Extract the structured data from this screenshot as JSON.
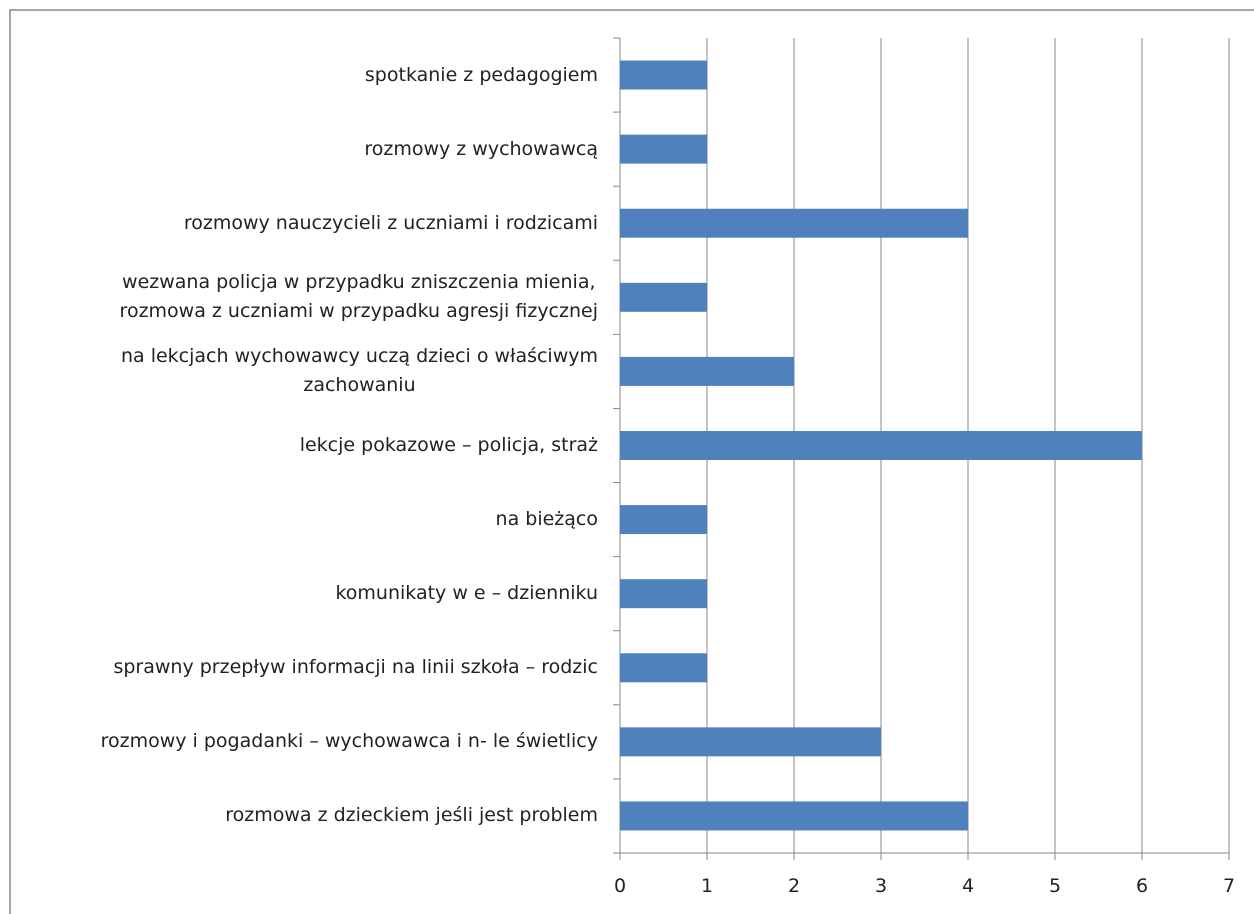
{
  "chart_data": {
    "type": "barh",
    "categories": [
      "spotkanie z pedagogiem",
      "rozmowy z wychowawcą",
      "rozmowy nauczycieli z uczniami i rodzicami",
      "wezwana policja w przypadku zniszczenia mienia,\nrozmowa z uczniami w przypadku agresji fizycznej",
      "na lekcjach wychowawcy uczą dzieci o właściwym\nzachowaniu",
      "lekcje pokazowe – policja, straż",
      "na bieżąco",
      "komunikaty w e – dzienniku",
      "sprawny przepływ informacji na linii szkoła – rodzic",
      "rozmowy i pogadanki – wychowawca i n- le świetlicy",
      "rozmowa z dzieckiem jeśli jest problem"
    ],
    "values": [
      1,
      1,
      4,
      1,
      2,
      6,
      1,
      1,
      1,
      3,
      4
    ],
    "color": "#4f81bd",
    "xlim": [
      0,
      7
    ],
    "xticks": [
      0,
      1,
      2,
      3,
      4,
      5,
      6,
      7
    ],
    "grid": true
  }
}
